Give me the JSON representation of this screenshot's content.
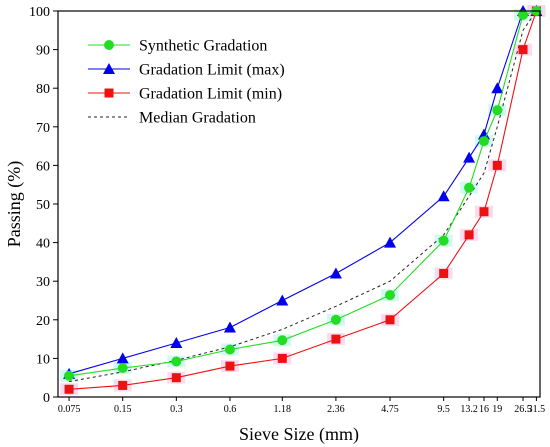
{
  "chart_data": {
    "type": "line",
    "title": "",
    "xlabel": "Sieve Size (mm)",
    "ylabel": "Passing (%)",
    "x_scale": "log",
    "ylim": [
      0,
      100
    ],
    "y_ticks": [
      0,
      10,
      20,
      30,
      40,
      50,
      60,
      70,
      80,
      90,
      100
    ],
    "x": [
      0.075,
      0.15,
      0.3,
      0.6,
      1.18,
      2.36,
      4.75,
      9.5,
      13.2,
      16,
      19,
      26.5,
      31.5
    ],
    "x_tick_labels": [
      "0.075",
      "0.15",
      "0.3",
      "0.6",
      "1.18",
      "2.36",
      "4.75",
      "9.5",
      "13.2",
      "16",
      "19",
      "26.5",
      "31.5"
    ],
    "legend_position": "top-left",
    "grid": false,
    "series": [
      {
        "name": "Synthetic Gradation",
        "color": "#22dd22",
        "marker": "circle",
        "line": "solid",
        "values": [
          5.5,
          7.5,
          9.2,
          12.3,
          14.7,
          20,
          26.4,
          40.5,
          54.2,
          66.3,
          74.3,
          99,
          100
        ]
      },
      {
        "name": "Gradation Limit (max)",
        "color": "#0000ee",
        "marker": "triangle",
        "line": "solid",
        "values": [
          6,
          10,
          14,
          18,
          25,
          32,
          40,
          52,
          62,
          68,
          80,
          100,
          100
        ]
      },
      {
        "name": "Gradation Limit (min)",
        "color": "#ee1111",
        "marker": "square",
        "line": "solid",
        "values": [
          2,
          3,
          5,
          8,
          10,
          15,
          20,
          32,
          42,
          48,
          60,
          90,
          100
        ]
      },
      {
        "name": "Median Gradation",
        "color": "#222222",
        "marker": "none",
        "line": "dashed",
        "values": [
          4,
          6.5,
          9.5,
          13,
          17.5,
          23.5,
          30,
          42,
          52,
          58,
          70,
          95,
          100
        ]
      }
    ]
  }
}
